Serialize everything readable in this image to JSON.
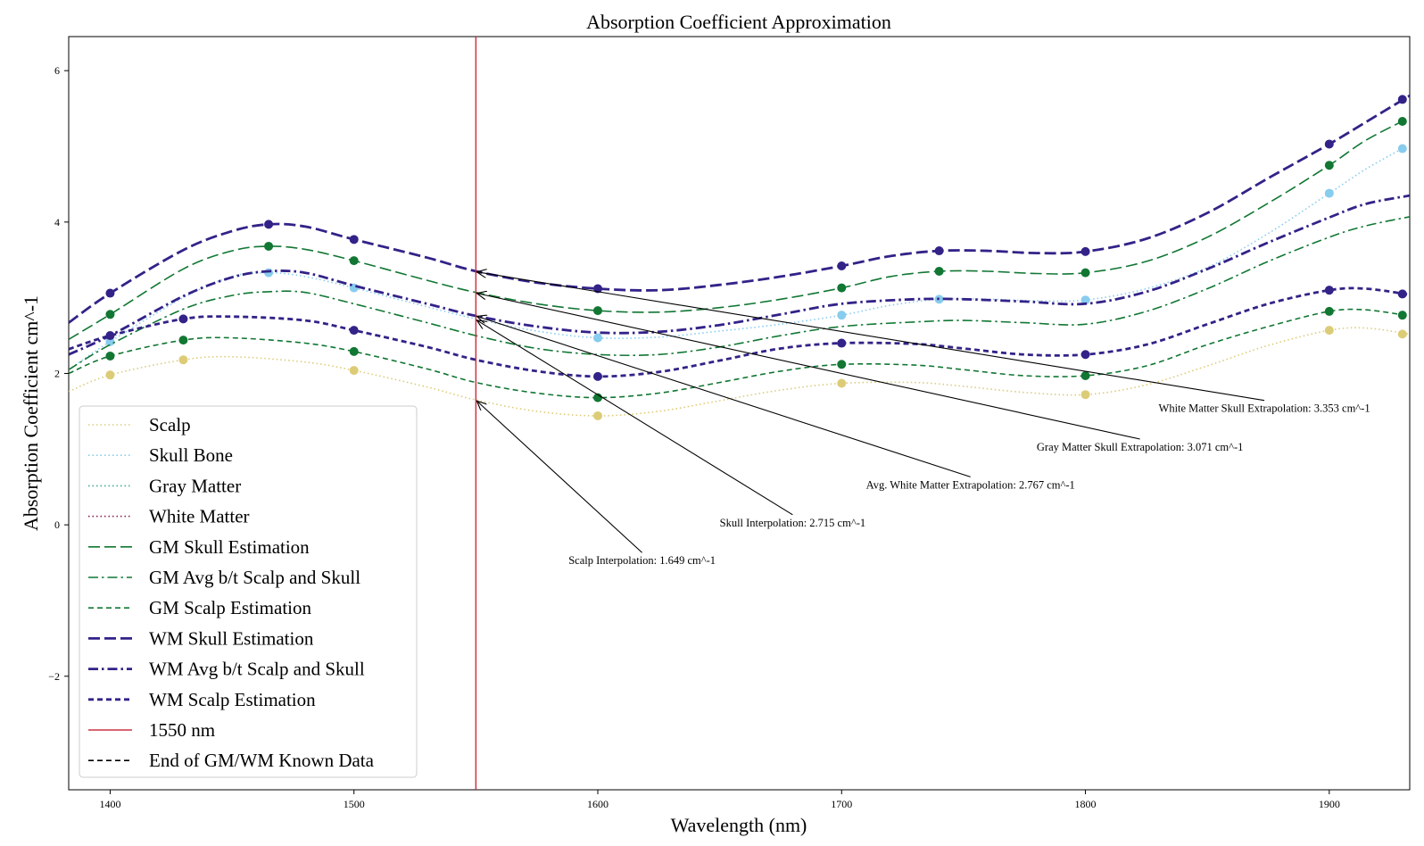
{
  "chart_data": {
    "type": "line",
    "title": "Absorption Coefficient Approximation",
    "xlabel": "Wavelength (nm)",
    "ylabel": "Absorption Coefficient cm^-1",
    "xlim": [
      1383,
      1933
    ],
    "ylim": [
      -3.5,
      6.45
    ],
    "x_ticks": [
      1400,
      1500,
      1600,
      1700,
      1800,
      1900
    ],
    "y_ticks": [
      -2,
      0,
      2,
      4,
      6
    ],
    "grid": false,
    "legend_position": "bottom-left",
    "series": [
      {
        "name": "Scalp",
        "color": "#DDCC77",
        "style": "dotted",
        "width": 1.6,
        "points": [
          [
            1383,
            1.76
          ],
          [
            1400,
            1.98
          ],
          [
            1430,
            2.18
          ],
          [
            1450,
            2.22
          ],
          [
            1480,
            2.15
          ],
          [
            1500,
            2.04
          ],
          [
            1530,
            1.82
          ],
          [
            1550,
            1.65
          ],
          [
            1575,
            1.5
          ],
          [
            1600,
            1.44
          ],
          [
            1625,
            1.5
          ],
          [
            1650,
            1.64
          ],
          [
            1675,
            1.78
          ],
          [
            1700,
            1.87
          ],
          [
            1730,
            1.88
          ],
          [
            1750,
            1.83
          ],
          [
            1775,
            1.75
          ],
          [
            1800,
            1.72
          ],
          [
            1825,
            1.85
          ],
          [
            1850,
            2.1
          ],
          [
            1875,
            2.37
          ],
          [
            1900,
            2.57
          ],
          [
            1915,
            2.6
          ],
          [
            1933,
            2.52
          ]
        ],
        "markers": [
          [
            1400,
            1.98
          ],
          [
            1430,
            2.18
          ],
          [
            1500,
            2.04
          ],
          [
            1600,
            1.44
          ],
          [
            1700,
            1.87
          ],
          [
            1800,
            1.72
          ],
          [
            1900,
            2.57
          ],
          [
            1930,
            2.52
          ]
        ]
      },
      {
        "name": "Skull Bone",
        "color": "#88CCEE",
        "style": "dotted",
        "width": 1.6,
        "points": [
          [
            1383,
            2.05
          ],
          [
            1400,
            2.42
          ],
          [
            1430,
            3.0
          ],
          [
            1450,
            3.28
          ],
          [
            1465,
            3.33
          ],
          [
            1480,
            3.28
          ],
          [
            1500,
            3.13
          ],
          [
            1530,
            2.88
          ],
          [
            1550,
            2.72
          ],
          [
            1575,
            2.56
          ],
          [
            1600,
            2.47
          ],
          [
            1625,
            2.48
          ],
          [
            1650,
            2.56
          ],
          [
            1675,
            2.65
          ],
          [
            1700,
            2.77
          ],
          [
            1720,
            2.9
          ],
          [
            1740,
            2.98
          ],
          [
            1760,
            2.98
          ],
          [
            1780,
            2.96
          ],
          [
            1800,
            2.97
          ],
          [
            1825,
            3.12
          ],
          [
            1850,
            3.4
          ],
          [
            1875,
            3.85
          ],
          [
            1900,
            4.38
          ],
          [
            1915,
            4.7
          ],
          [
            1930,
            4.97
          ]
        ],
        "markers": [
          [
            1400,
            2.42
          ],
          [
            1465,
            3.33
          ],
          [
            1500,
            3.13
          ],
          [
            1600,
            2.47
          ],
          [
            1700,
            2.77
          ],
          [
            1740,
            2.98
          ],
          [
            1800,
            2.97
          ],
          [
            1900,
            4.38
          ],
          [
            1930,
            4.97
          ]
        ]
      },
      {
        "name": "Gray Matter",
        "color": "#44AA99",
        "style": "dotted",
        "width": 1.6,
        "points": [],
        "markers": []
      },
      {
        "name": "White Matter",
        "color": "#882255",
        "style": "dotted",
        "width": 1.6,
        "points": [],
        "markers": []
      },
      {
        "name": "GM Skull Estimation",
        "color": "#117733",
        "style": "dash-long",
        "width": 1.6,
        "points": [
          [
            1383,
            2.45
          ],
          [
            1400,
            2.78
          ],
          [
            1430,
            3.38
          ],
          [
            1450,
            3.62
          ],
          [
            1465,
            3.68
          ],
          [
            1480,
            3.64
          ],
          [
            1500,
            3.49
          ],
          [
            1530,
            3.23
          ],
          [
            1550,
            3.07
          ],
          [
            1575,
            2.92
          ],
          [
            1600,
            2.83
          ],
          [
            1625,
            2.81
          ],
          [
            1650,
            2.87
          ],
          [
            1675,
            2.98
          ],
          [
            1700,
            3.13
          ],
          [
            1720,
            3.28
          ],
          [
            1740,
            3.35
          ],
          [
            1760,
            3.35
          ],
          [
            1780,
            3.32
          ],
          [
            1800,
            3.33
          ],
          [
            1825,
            3.48
          ],
          [
            1850,
            3.8
          ],
          [
            1875,
            4.25
          ],
          [
            1900,
            4.75
          ],
          [
            1915,
            5.08
          ],
          [
            1933,
            5.38
          ]
        ],
        "markers": [
          [
            1400,
            2.78
          ],
          [
            1465,
            3.68
          ],
          [
            1500,
            3.49
          ],
          [
            1600,
            2.83
          ],
          [
            1700,
            3.13
          ],
          [
            1740,
            3.35
          ],
          [
            1800,
            3.33
          ],
          [
            1900,
            4.75
          ],
          [
            1930,
            5.33
          ]
        ]
      },
      {
        "name": "GM Avg b/t Scalp and Skull",
        "color": "#117733",
        "style": "dash-dot",
        "width": 1.6,
        "points": [
          [
            1383,
            2.05
          ],
          [
            1400,
            2.38
          ],
          [
            1430,
            2.85
          ],
          [
            1450,
            3.03
          ],
          [
            1465,
            3.08
          ],
          [
            1480,
            3.07
          ],
          [
            1500,
            2.92
          ],
          [
            1530,
            2.67
          ],
          [
            1550,
            2.5
          ],
          [
            1575,
            2.33
          ],
          [
            1600,
            2.25
          ],
          [
            1625,
            2.25
          ],
          [
            1650,
            2.35
          ],
          [
            1675,
            2.5
          ],
          [
            1700,
            2.62
          ],
          [
            1730,
            2.68
          ],
          [
            1750,
            2.7
          ],
          [
            1775,
            2.67
          ],
          [
            1800,
            2.65
          ],
          [
            1825,
            2.82
          ],
          [
            1850,
            3.12
          ],
          [
            1875,
            3.48
          ],
          [
            1900,
            3.8
          ],
          [
            1915,
            3.95
          ],
          [
            1933,
            4.07
          ]
        ],
        "markers": []
      },
      {
        "name": "GM Scalp Estimation",
        "color": "#117733",
        "style": "dash-short",
        "width": 1.6,
        "points": [
          [
            1383,
            2.0
          ],
          [
            1400,
            2.23
          ],
          [
            1430,
            2.44
          ],
          [
            1450,
            2.47
          ],
          [
            1480,
            2.4
          ],
          [
            1500,
            2.29
          ],
          [
            1530,
            2.06
          ],
          [
            1550,
            1.88
          ],
          [
            1575,
            1.74
          ],
          [
            1600,
            1.68
          ],
          [
            1625,
            1.74
          ],
          [
            1650,
            1.88
          ],
          [
            1675,
            2.03
          ],
          [
            1700,
            2.12
          ],
          [
            1730,
            2.11
          ],
          [
            1750,
            2.05
          ],
          [
            1775,
            1.97
          ],
          [
            1800,
            1.97
          ],
          [
            1825,
            2.1
          ],
          [
            1850,
            2.38
          ],
          [
            1875,
            2.62
          ],
          [
            1900,
            2.82
          ],
          [
            1915,
            2.84
          ],
          [
            1933,
            2.76
          ]
        ],
        "markers": [
          [
            1400,
            2.23
          ],
          [
            1430,
            2.44
          ],
          [
            1500,
            2.29
          ],
          [
            1600,
            1.68
          ],
          [
            1700,
            2.12
          ],
          [
            1800,
            1.97
          ],
          [
            1900,
            2.82
          ],
          [
            1930,
            2.77
          ]
        ]
      },
      {
        "name": "WM Skull Estimation",
        "color": "#332288",
        "style": "dash-long",
        "width": 2.8,
        "points": [
          [
            1383,
            2.67
          ],
          [
            1400,
            3.06
          ],
          [
            1430,
            3.63
          ],
          [
            1450,
            3.88
          ],
          [
            1465,
            3.97
          ],
          [
            1480,
            3.94
          ],
          [
            1500,
            3.77
          ],
          [
            1530,
            3.53
          ],
          [
            1550,
            3.35
          ],
          [
            1575,
            3.2
          ],
          [
            1600,
            3.12
          ],
          [
            1625,
            3.1
          ],
          [
            1650,
            3.17
          ],
          [
            1675,
            3.28
          ],
          [
            1700,
            3.42
          ],
          [
            1720,
            3.55
          ],
          [
            1740,
            3.62
          ],
          [
            1760,
            3.62
          ],
          [
            1780,
            3.59
          ],
          [
            1800,
            3.61
          ],
          [
            1825,
            3.78
          ],
          [
            1850,
            4.12
          ],
          [
            1875,
            4.58
          ],
          [
            1900,
            5.03
          ],
          [
            1915,
            5.32
          ],
          [
            1933,
            5.67
          ]
        ],
        "markers": [
          [
            1400,
            3.06
          ],
          [
            1465,
            3.97
          ],
          [
            1500,
            3.77
          ],
          [
            1600,
            3.12
          ],
          [
            1700,
            3.42
          ],
          [
            1740,
            3.62
          ],
          [
            1800,
            3.61
          ],
          [
            1900,
            5.03
          ],
          [
            1930,
            5.62
          ]
        ]
      },
      {
        "name": "WM Avg b/t Scalp and Skull",
        "color": "#332288",
        "style": "dash-dot",
        "width": 2.8,
        "points": [
          [
            1383,
            2.25
          ],
          [
            1400,
            2.5
          ],
          [
            1430,
            3.02
          ],
          [
            1450,
            3.27
          ],
          [
            1465,
            3.35
          ],
          [
            1480,
            3.33
          ],
          [
            1500,
            3.16
          ],
          [
            1530,
            2.92
          ],
          [
            1550,
            2.76
          ],
          [
            1575,
            2.62
          ],
          [
            1600,
            2.54
          ],
          [
            1625,
            2.55
          ],
          [
            1650,
            2.64
          ],
          [
            1675,
            2.78
          ],
          [
            1700,
            2.92
          ],
          [
            1730,
            2.98
          ],
          [
            1750,
            2.98
          ],
          [
            1775,
            2.95
          ],
          [
            1800,
            2.92
          ],
          [
            1825,
            3.08
          ],
          [
            1850,
            3.38
          ],
          [
            1875,
            3.73
          ],
          [
            1900,
            4.06
          ],
          [
            1915,
            4.24
          ],
          [
            1933,
            4.35
          ]
        ],
        "markers": []
      },
      {
        "name": "WM Scalp Estimation",
        "color": "#332288",
        "style": "dash-short",
        "width": 2.8,
        "points": [
          [
            1383,
            2.32
          ],
          [
            1400,
            2.5
          ],
          [
            1430,
            2.72
          ],
          [
            1450,
            2.75
          ],
          [
            1480,
            2.7
          ],
          [
            1500,
            2.57
          ],
          [
            1530,
            2.35
          ],
          [
            1550,
            2.18
          ],
          [
            1575,
            2.03
          ],
          [
            1600,
            1.96
          ],
          [
            1625,
            2.02
          ],
          [
            1650,
            2.17
          ],
          [
            1675,
            2.33
          ],
          [
            1700,
            2.4
          ],
          [
            1730,
            2.39
          ],
          [
            1750,
            2.33
          ],
          [
            1775,
            2.25
          ],
          [
            1800,
            2.25
          ],
          [
            1825,
            2.38
          ],
          [
            1850,
            2.65
          ],
          [
            1875,
            2.92
          ],
          [
            1900,
            3.1
          ],
          [
            1915,
            3.12
          ],
          [
            1933,
            3.04
          ]
        ],
        "markers": [
          [
            1400,
            2.5
          ],
          [
            1430,
            2.72
          ],
          [
            1500,
            2.57
          ],
          [
            1600,
            1.96
          ],
          [
            1700,
            2.4
          ],
          [
            1800,
            2.25
          ],
          [
            1900,
            3.1
          ],
          [
            1930,
            3.05
          ]
        ]
      }
    ],
    "vertical_line": {
      "name": "1550 nm",
      "x": 1550,
      "color": "#CC3344"
    },
    "legend_extra": [
      {
        "name": "End of GM/WM Known Data",
        "color": "#000000",
        "style": "dash-short"
      }
    ],
    "annotations": [
      {
        "text": "Scalp Interpolation: 1.649 cm^-1",
        "target": [
          1550,
          1.649
        ],
        "text_at": [
          1588,
          -0.52
        ]
      },
      {
        "text": "Skull Interpolation: 2.715 cm^-1",
        "target": [
          1550,
          2.715
        ],
        "text_at": [
          1650,
          -0.02
        ]
      },
      {
        "text": "Avg. White Matter Extrapolation: 2.767 cm^-1",
        "target": [
          1550,
          2.767
        ],
        "text_at": [
          1710,
          0.48
        ]
      },
      {
        "text": "Gray Matter Skull Extrapolation: 3.071 cm^-1",
        "target": [
          1550,
          3.071
        ],
        "text_at": [
          1780,
          0.98
        ]
      },
      {
        "text": "White Matter Skull Extrapolation: 3.353 cm^-1",
        "target": [
          1550,
          3.353
        ],
        "text_at": [
          1830,
          1.49
        ]
      }
    ]
  }
}
